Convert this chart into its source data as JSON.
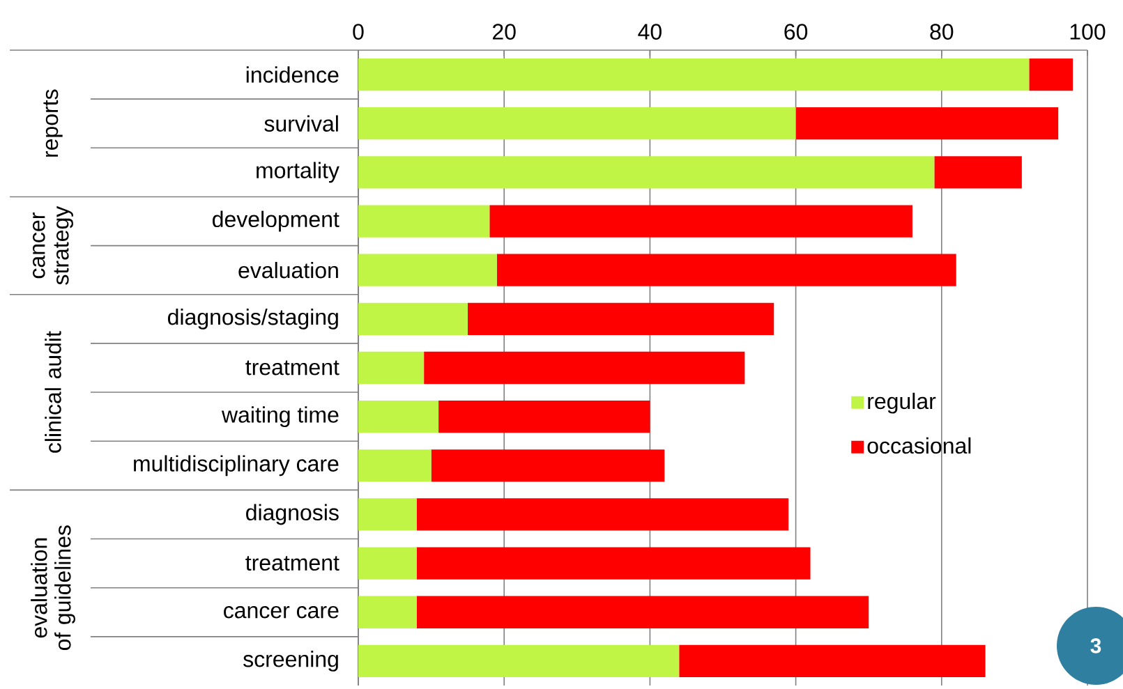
{
  "chart_data": {
    "type": "bar",
    "orientation": "horizontal",
    "stacked": true,
    "categories": [
      "incidence",
      "survival",
      "mortality",
      "development",
      "evaluation",
      "diagnosis/staging",
      "treatment",
      "waiting time",
      "multidisciplinary care",
      "diagnosis",
      "treatment",
      "cancer care",
      "screening"
    ],
    "series": [
      {
        "name": "regular",
        "color": "#c0f545",
        "values": [
          92,
          60,
          79,
          18,
          19,
          15,
          9,
          11,
          10,
          8,
          8,
          8,
          44
        ]
      },
      {
        "name": "occasional",
        "color": "#ff0000",
        "values": [
          6,
          36,
          12,
          58,
          63,
          42,
          44,
          29,
          32,
          51,
          54,
          62,
          42
        ]
      }
    ],
    "xlim": [
      0,
      100
    ],
    "xticks": [
      0,
      20,
      40,
      60,
      80,
      100
    ],
    "grid": "x",
    "legend": "right",
    "annotations": [
      "reports",
      "cancer strategy",
      "clinical audit",
      "evaluation of guidelines",
      "3"
    ]
  }
}
